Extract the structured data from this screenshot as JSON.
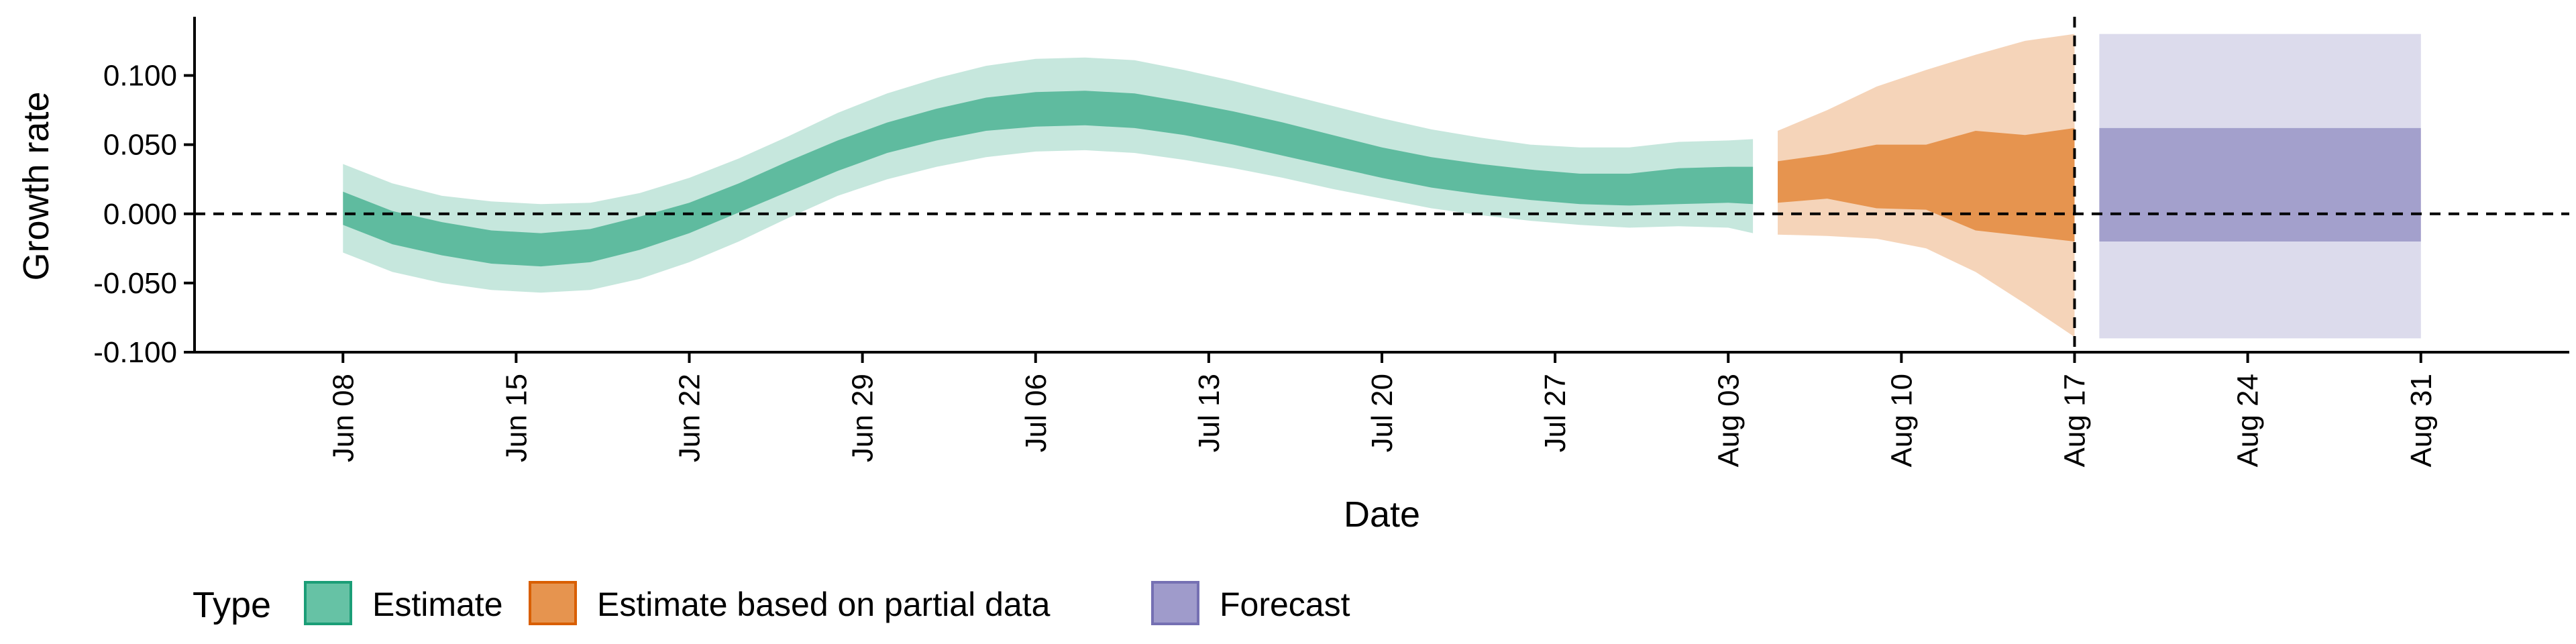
{
  "chart_data": {
    "type": "area",
    "title": "",
    "xlabel": "Date",
    "ylabel": "Growth rate",
    "ylim": [
      -0.1,
      0.14
    ],
    "xlim": [
      "2020-06-02",
      "2020-09-06"
    ],
    "y_ticks": [
      -0.1,
      -0.05,
      0.0,
      0.05,
      0.1
    ],
    "y_tick_labels": [
      "-0.100",
      "-0.050",
      "0.000",
      "0.050",
      "0.100"
    ],
    "x_ticks": [
      "2020-06-08",
      "2020-06-15",
      "2020-06-22",
      "2020-06-29",
      "2020-07-06",
      "2020-07-13",
      "2020-07-20",
      "2020-07-27",
      "2020-08-03",
      "2020-08-10",
      "2020-08-17",
      "2020-08-24",
      "2020-08-31"
    ],
    "x_tick_labels": [
      "Jun 08",
      "Jun 15",
      "Jun 22",
      "Jun 29",
      "Jul 06",
      "Jul 13",
      "Jul 20",
      "Jul 27",
      "Aug 03",
      "Aug 10",
      "Aug 17",
      "Aug 24",
      "Aug 31"
    ],
    "reference_lines": {
      "horizontal_y": 0.0,
      "vertical_date": "2020-08-17"
    },
    "grid": false,
    "legend": {
      "title": "Type",
      "placement": "bottom-left",
      "entries": [
        {
          "label": "Estimate",
          "color": "#66c2a5"
        },
        {
          "label": "Estimate based on partial data",
          "color": "#e6944f"
        },
        {
          "label": "Forecast",
          "color": "#9f9bcb"
        }
      ]
    },
    "series": [
      {
        "name": "Estimate",
        "color": "#1b9e77",
        "outer_opacity": 0.25,
        "inner_opacity": 0.6,
        "points": [
          {
            "date": "2020-06-08",
            "outer_lo": -0.028,
            "inner_lo": -0.008,
            "inner_hi": 0.016,
            "outer_hi": 0.036
          },
          {
            "date": "2020-06-10",
            "outer_lo": -0.042,
            "inner_lo": -0.022,
            "inner_hi": 0.002,
            "outer_hi": 0.022
          },
          {
            "date": "2020-06-12",
            "outer_lo": -0.05,
            "inner_lo": -0.03,
            "inner_hi": -0.006,
            "outer_hi": 0.013
          },
          {
            "date": "2020-06-14",
            "outer_lo": -0.055,
            "inner_lo": -0.036,
            "inner_hi": -0.012,
            "outer_hi": 0.009
          },
          {
            "date": "2020-06-16",
            "outer_lo": -0.057,
            "inner_lo": -0.038,
            "inner_hi": -0.014,
            "outer_hi": 0.007
          },
          {
            "date": "2020-06-18",
            "outer_lo": -0.055,
            "inner_lo": -0.035,
            "inner_hi": -0.011,
            "outer_hi": 0.008
          },
          {
            "date": "2020-06-20",
            "outer_lo": -0.047,
            "inner_lo": -0.026,
            "inner_hi": -0.002,
            "outer_hi": 0.015
          },
          {
            "date": "2020-06-22",
            "outer_lo": -0.035,
            "inner_lo": -0.014,
            "inner_hi": 0.008,
            "outer_hi": 0.026
          },
          {
            "date": "2020-06-24",
            "outer_lo": -0.02,
            "inner_lo": 0.001,
            "inner_hi": 0.022,
            "outer_hi": 0.04
          },
          {
            "date": "2020-06-26",
            "outer_lo": -0.003,
            "inner_lo": 0.016,
            "inner_hi": 0.038,
            "outer_hi": 0.056
          },
          {
            "date": "2020-06-28",
            "outer_lo": 0.013,
            "inner_lo": 0.031,
            "inner_hi": 0.053,
            "outer_hi": 0.073
          },
          {
            "date": "2020-06-30",
            "outer_lo": 0.025,
            "inner_lo": 0.044,
            "inner_hi": 0.066,
            "outer_hi": 0.087
          },
          {
            "date": "2020-07-02",
            "outer_lo": 0.034,
            "inner_lo": 0.053,
            "inner_hi": 0.076,
            "outer_hi": 0.098
          },
          {
            "date": "2020-07-04",
            "outer_lo": 0.041,
            "inner_lo": 0.06,
            "inner_hi": 0.084,
            "outer_hi": 0.107
          },
          {
            "date": "2020-07-06",
            "outer_lo": 0.045,
            "inner_lo": 0.063,
            "inner_hi": 0.088,
            "outer_hi": 0.112
          },
          {
            "date": "2020-07-08",
            "outer_lo": 0.046,
            "inner_lo": 0.064,
            "inner_hi": 0.089,
            "outer_hi": 0.113
          },
          {
            "date": "2020-07-10",
            "outer_lo": 0.044,
            "inner_lo": 0.062,
            "inner_hi": 0.087,
            "outer_hi": 0.111
          },
          {
            "date": "2020-07-12",
            "outer_lo": 0.039,
            "inner_lo": 0.057,
            "inner_hi": 0.081,
            "outer_hi": 0.104
          },
          {
            "date": "2020-07-14",
            "outer_lo": 0.033,
            "inner_lo": 0.05,
            "inner_hi": 0.074,
            "outer_hi": 0.096
          },
          {
            "date": "2020-07-16",
            "outer_lo": 0.026,
            "inner_lo": 0.042,
            "inner_hi": 0.066,
            "outer_hi": 0.087
          },
          {
            "date": "2020-07-18",
            "outer_lo": 0.018,
            "inner_lo": 0.034,
            "inner_hi": 0.057,
            "outer_hi": 0.078
          },
          {
            "date": "2020-07-20",
            "outer_lo": 0.011,
            "inner_lo": 0.026,
            "inner_hi": 0.048,
            "outer_hi": 0.069
          },
          {
            "date": "2020-07-22",
            "outer_lo": 0.004,
            "inner_lo": 0.019,
            "inner_hi": 0.041,
            "outer_hi": 0.061
          },
          {
            "date": "2020-07-24",
            "outer_lo": -0.001,
            "inner_lo": 0.014,
            "inner_hi": 0.036,
            "outer_hi": 0.055
          },
          {
            "date": "2020-07-26",
            "outer_lo": -0.005,
            "inner_lo": 0.01,
            "inner_hi": 0.032,
            "outer_hi": 0.05
          },
          {
            "date": "2020-07-28",
            "outer_lo": -0.008,
            "inner_lo": 0.007,
            "inner_hi": 0.029,
            "outer_hi": 0.048
          },
          {
            "date": "2020-07-30",
            "outer_lo": -0.01,
            "inner_lo": 0.006,
            "inner_hi": 0.029,
            "outer_hi": 0.048
          },
          {
            "date": "2020-08-01",
            "outer_lo": -0.009,
            "inner_lo": 0.007,
            "inner_hi": 0.033,
            "outer_hi": 0.052
          },
          {
            "date": "2020-08-03",
            "outer_lo": -0.01,
            "inner_lo": 0.008,
            "inner_hi": 0.034,
            "outer_hi": 0.053
          },
          {
            "date": "2020-08-04",
            "outer_lo": -0.014,
            "inner_lo": 0.007,
            "inner_hi": 0.034,
            "outer_hi": 0.054
          }
        ]
      },
      {
        "name": "Estimate based on partial data",
        "color": "#e6944f",
        "outer_opacity": 0.4,
        "inner_opacity": 1.0,
        "points": [
          {
            "date": "2020-08-05",
            "outer_lo": -0.015,
            "inner_lo": 0.008,
            "inner_hi": 0.038,
            "outer_hi": 0.06
          },
          {
            "date": "2020-08-07",
            "outer_lo": -0.016,
            "inner_lo": 0.011,
            "inner_hi": 0.043,
            "outer_hi": 0.075
          },
          {
            "date": "2020-08-09",
            "outer_lo": -0.018,
            "inner_lo": 0.004,
            "inner_hi": 0.05,
            "outer_hi": 0.092
          },
          {
            "date": "2020-08-11",
            "outer_lo": -0.025,
            "inner_lo": 0.003,
            "inner_hi": 0.05,
            "outer_hi": 0.104
          },
          {
            "date": "2020-08-13",
            "outer_lo": -0.042,
            "inner_lo": -0.012,
            "inner_hi": 0.06,
            "outer_hi": 0.115
          },
          {
            "date": "2020-08-15",
            "outer_lo": -0.065,
            "inner_lo": -0.016,
            "inner_hi": 0.057,
            "outer_hi": 0.125
          },
          {
            "date": "2020-08-17",
            "outer_lo": -0.089,
            "inner_lo": -0.02,
            "inner_hi": 0.062,
            "outer_hi": 0.13
          }
        ]
      },
      {
        "name": "Forecast",
        "color": "#7570b3",
        "outer_opacity": 0.25,
        "inner_opacity": 0.55,
        "points": [
          {
            "date": "2020-08-18",
            "outer_lo": -0.09,
            "inner_lo": -0.02,
            "inner_hi": 0.062,
            "outer_hi": 0.13
          },
          {
            "date": "2020-08-31",
            "outer_lo": -0.09,
            "inner_lo": -0.02,
            "inner_hi": 0.062,
            "outer_hi": 0.13
          }
        ]
      }
    ]
  }
}
